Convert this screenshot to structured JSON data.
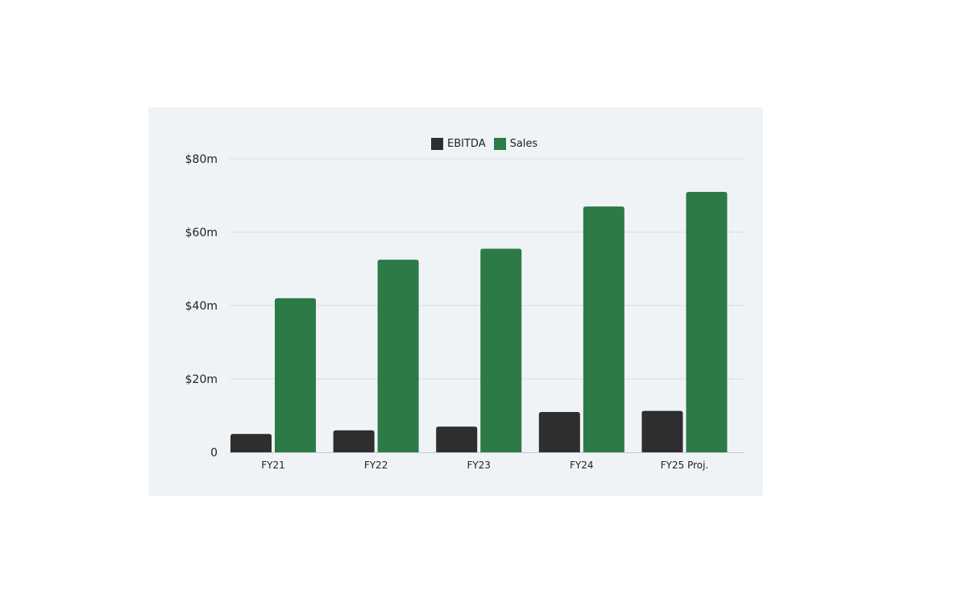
{
  "chart_data": {
    "type": "bar",
    "title": "",
    "xlabel": "",
    "ylabel": "",
    "categories": [
      "FY21",
      "FY22",
      "FY23",
      "FY24",
      "FY25 Proj."
    ],
    "series": [
      {
        "name": "EBITDA",
        "color": "#2e2e2e",
        "values": [
          5.0,
          6.0,
          7.0,
          11.0,
          11.3
        ]
      },
      {
        "name": "Sales",
        "color": "#2c7a48",
        "values": [
          42.0,
          52.5,
          55.5,
          67.0,
          71.0
        ]
      }
    ],
    "ylim": [
      0,
      80
    ],
    "y_ticks": [
      {
        "value": 0,
        "label": "0"
      },
      {
        "value": 20,
        "label": "$20m"
      },
      {
        "value": 40,
        "label": "$40m"
      },
      {
        "value": 60,
        "label": "$60m"
      },
      {
        "value": 80,
        "label": "$80m"
      }
    ],
    "grid": true,
    "legend_position": "top-center"
  }
}
